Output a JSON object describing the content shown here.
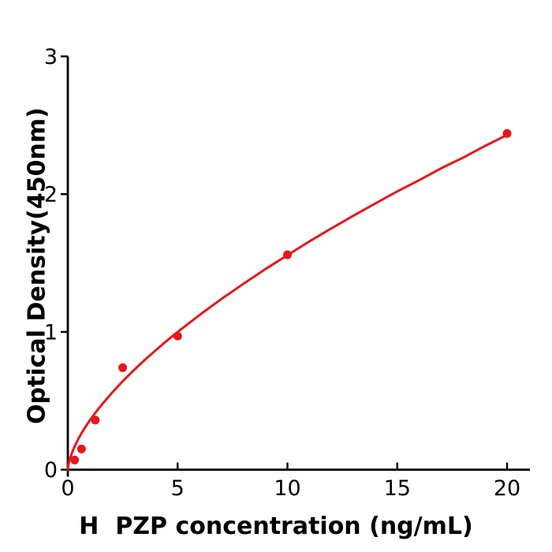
{
  "figure": {
    "background": "#ffffff"
  },
  "chart_data": {
    "type": "scatter",
    "title": "",
    "xlabel": "H  PZP concentration (ng/mL)",
    "ylabel": "Optical Density(450nm)",
    "xlim": [
      0,
      21
    ],
    "ylim": [
      0,
      3
    ],
    "x_ticks": [
      0,
      5,
      10,
      15,
      20
    ],
    "y_ticks": [
      0,
      1,
      2,
      3
    ],
    "grid": false,
    "legend": false,
    "colors": {
      "series": "#e8171d",
      "axis": "#000000"
    },
    "series": [
      {
        "name": "standard-data-points",
        "type": "scatter",
        "color": "#e8171d",
        "points": [
          [
            0.313,
            0.07
          ],
          [
            0.625,
            0.15
          ],
          [
            1.25,
            0.36
          ],
          [
            2.5,
            0.74
          ],
          [
            5,
            0.97
          ],
          [
            10,
            1.56
          ],
          [
            20,
            2.44
          ]
        ]
      },
      {
        "name": "fit-curve",
        "type": "line",
        "color": "#e8171d",
        "points": [
          [
            0,
            0
          ],
          [
            0.025,
            0.033
          ],
          [
            0.05,
            0.052
          ],
          [
            0.1,
            0.082
          ],
          [
            0.2,
            0.127
          ],
          [
            0.31,
            0.169
          ],
          [
            0.5,
            0.229
          ],
          [
            0.63,
            0.266
          ],
          [
            0.8,
            0.309
          ],
          [
            1.0,
            0.357
          ],
          [
            1.25,
            0.412
          ],
          [
            1.6,
            0.482
          ],
          [
            2.0,
            0.556
          ],
          [
            2.5,
            0.642
          ],
          [
            3.0,
            0.721
          ],
          [
            3.5,
            0.796
          ],
          [
            4.0,
            0.866
          ],
          [
            4.5,
            0.935
          ],
          [
            5.0,
            1.0
          ],
          [
            6.0,
            1.123
          ],
          [
            7.0,
            1.24
          ],
          [
            8.0,
            1.35
          ],
          [
            9.0,
            1.456
          ],
          [
            10.0,
            1.557
          ],
          [
            11.0,
            1.657
          ],
          [
            12.0,
            1.751
          ],
          [
            13.0,
            1.843
          ],
          [
            14.0,
            1.932
          ],
          [
            15.0,
            2.02
          ],
          [
            16.0,
            2.102
          ],
          [
            17.0,
            2.188
          ],
          [
            18.0,
            2.265
          ],
          [
            19.0,
            2.35
          ],
          [
            20.0,
            2.43
          ]
        ]
      }
    ]
  }
}
